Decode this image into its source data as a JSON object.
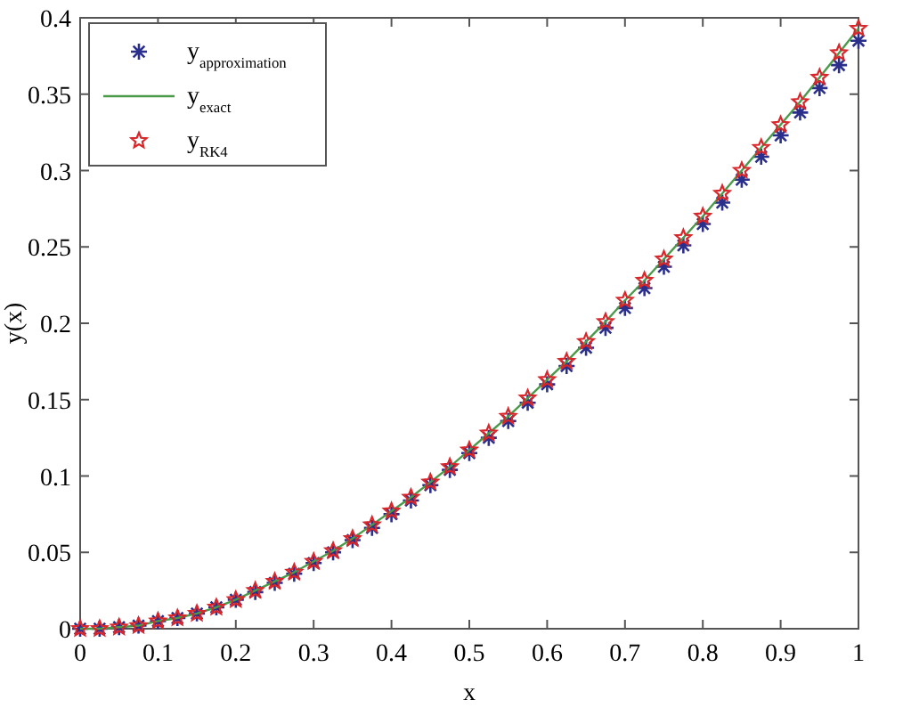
{
  "chart_data": {
    "type": "line",
    "xlabel": "x",
    "ylabel": "y(x)",
    "x": [
      0,
      0.025,
      0.05,
      0.075,
      0.1,
      0.125,
      0.15,
      0.175,
      0.2,
      0.225,
      0.25,
      0.275,
      0.3,
      0.325,
      0.35,
      0.375,
      0.4,
      0.425,
      0.45,
      0.475,
      0.5,
      0.525,
      0.55,
      0.575,
      0.6,
      0.625,
      0.65,
      0.675,
      0.7,
      0.725,
      0.75,
      0.775,
      0.8,
      0.825,
      0.85,
      0.875,
      0.9,
      0.925,
      0.95,
      0.975,
      1
    ],
    "series": [
      {
        "name": "y$_{approximation}$",
        "type": "scatter",
        "marker": "cross",
        "color": "#2b2f8c",
        "values": [
          0,
          0,
          0.001,
          0.002,
          0.005,
          0.007,
          0.01,
          0.014,
          0.019,
          0.024,
          0.03,
          0.036,
          0.043,
          0.05,
          0.058,
          0.066,
          0.075,
          0.084,
          0.094,
          0.104,
          0.115,
          0.125,
          0.136,
          0.148,
          0.16,
          0.172,
          0.184,
          0.197,
          0.21,
          0.223,
          0.237,
          0.251,
          0.265,
          0.279,
          0.294,
          0.309,
          0.323,
          0.338,
          0.354,
          0.369,
          0.385
        ]
      },
      {
        "name": "y$_{exact}$",
        "marker": "none",
        "color": "#4a9a4a",
        "values": [
          0,
          0,
          0.001,
          0.002,
          0.005,
          0.007,
          0.01,
          0.014,
          0.019,
          0.025,
          0.031,
          0.037,
          0.044,
          0.051,
          0.059,
          0.068,
          0.077,
          0.086,
          0.096,
          0.106,
          0.117,
          0.128,
          0.139,
          0.151,
          0.163,
          0.175,
          0.188,
          0.201,
          0.215,
          0.228,
          0.242,
          0.256,
          0.27,
          0.285,
          0.3,
          0.315,
          0.33,
          0.345,
          0.361,
          0.377,
          0.393
        ]
      },
      {
        "name": "y$_{RK4}$",
        "type": "scatter",
        "marker": "star",
        "color": "#d8262a",
        "values": [
          0,
          0,
          0.001,
          0.002,
          0.005,
          0.007,
          0.01,
          0.014,
          0.019,
          0.025,
          0.031,
          0.037,
          0.044,
          0.051,
          0.059,
          0.068,
          0.077,
          0.086,
          0.096,
          0.106,
          0.117,
          0.128,
          0.139,
          0.151,
          0.163,
          0.175,
          0.188,
          0.201,
          0.215,
          0.228,
          0.242,
          0.256,
          0.27,
          0.285,
          0.3,
          0.315,
          0.33,
          0.345,
          0.361,
          0.377,
          0.393
        ]
      }
    ],
    "xlim": [
      0,
      1
    ],
    "xticks": [
      0,
      0.1,
      0.2,
      0.3,
      0.4,
      0.5,
      0.6,
      0.7,
      0.8,
      0.9,
      1
    ],
    "ylim": [
      0,
      0.4
    ],
    "yticks": [
      0,
      0.05,
      0.1,
      0.15,
      0.2,
      0.25,
      0.3,
      0.35,
      0.4
    ],
    "grid": false,
    "legend": "top left"
  }
}
